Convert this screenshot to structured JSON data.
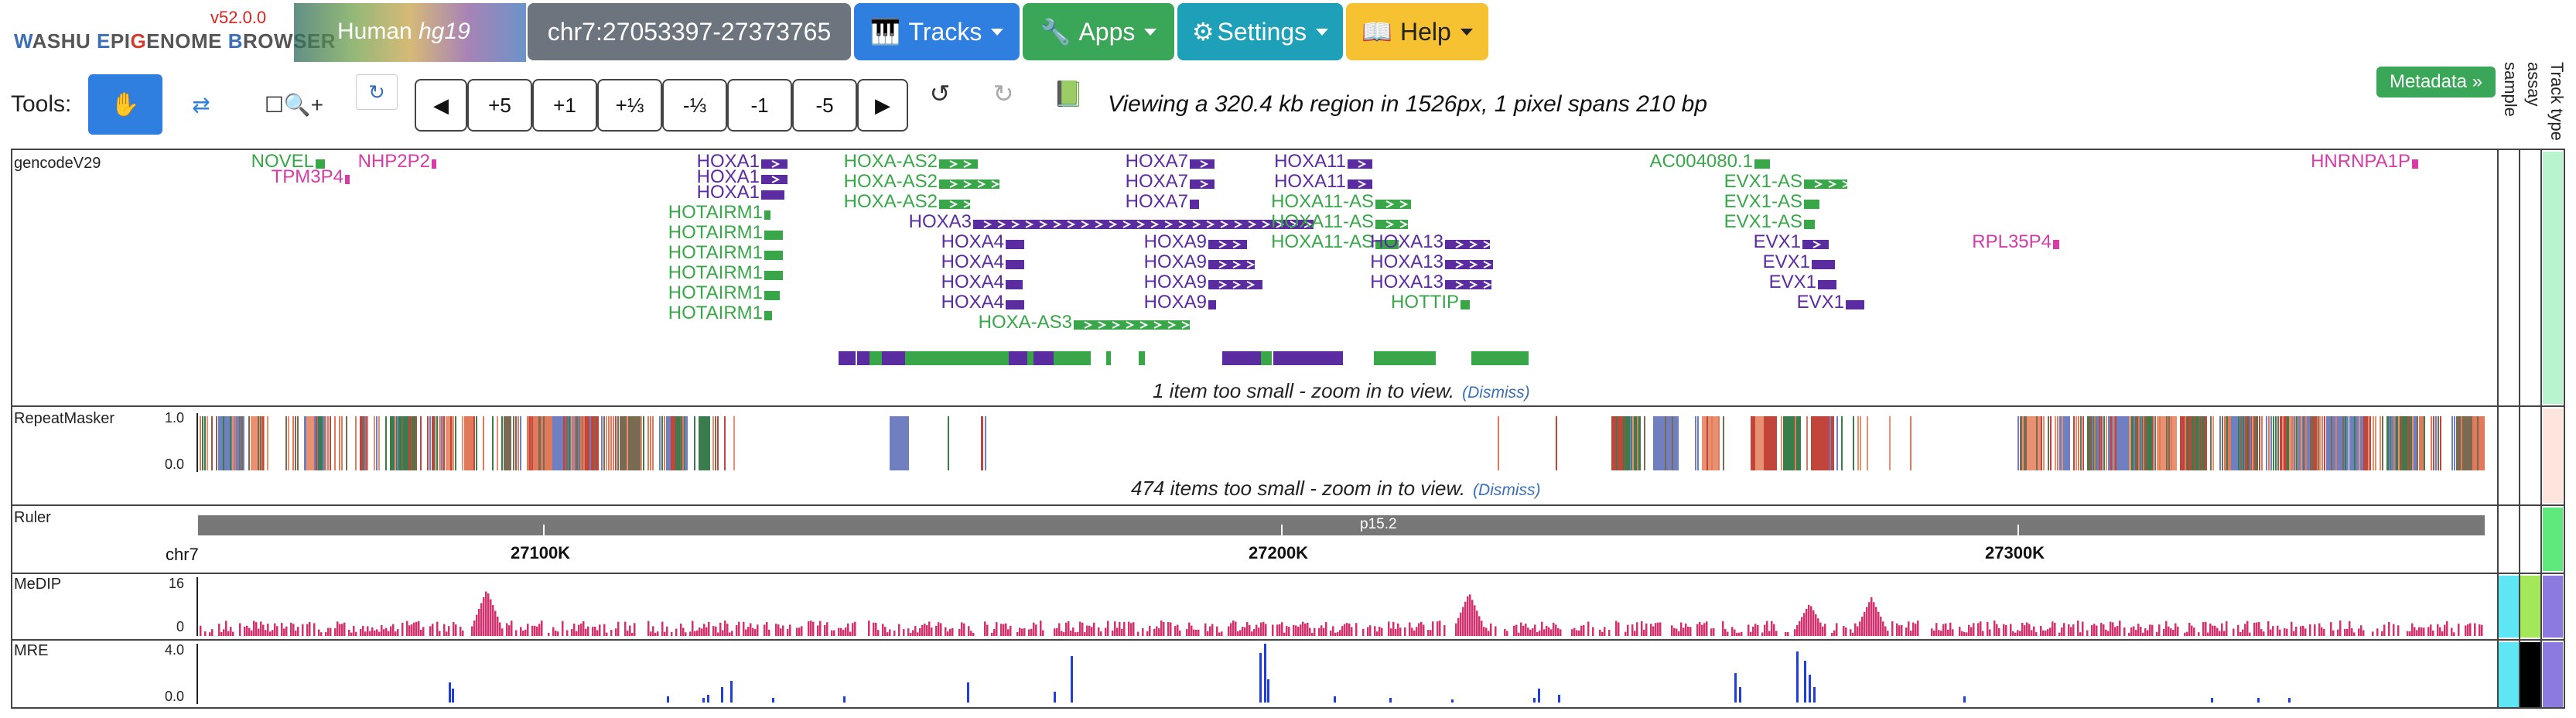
{
  "header": {
    "logo_text": "WASHU EPIGENOME BROWSER",
    "version": "v52.0.0",
    "genome_name": "Human",
    "genome_assembly": "hg19",
    "region": "chr7:27053397-27373765",
    "tracks_label": "Tracks",
    "apps_label": "Apps",
    "settings_label": "Settings",
    "help_label": "Help"
  },
  "toolbar": {
    "tools_label": "Tools:",
    "nav_buttons": [
      "+5",
      "+1",
      "+⅓",
      "-⅓",
      "-1",
      "-5"
    ],
    "view_text": "Viewing a 320.4 kb region in 1526px, 1 pixel spans 210 bp",
    "metadata_label": "Metadata »",
    "metadata_columns": [
      "sample",
      "assay",
      "Track type"
    ]
  },
  "tracks": {
    "gencode": {
      "name": "gencodeV29",
      "note": "1 item too small - zoom in to view.",
      "dismiss": "(Dismiss)",
      "genes": [
        {
          "label": "NOVEL",
          "color": "#3aa64a"
        },
        {
          "label": "NHP2P2",
          "color": "#d63ca6"
        },
        {
          "label": "TPM3P4",
          "color": "#d63ca6"
        },
        {
          "label": "HOXA1",
          "color": "#5b2ca0"
        },
        {
          "label": "HOXA1",
          "color": "#5b2ca0"
        },
        {
          "label": "HOXA1",
          "color": "#5b2ca0"
        },
        {
          "label": "HOTAIRM1",
          "color": "#3aa64a"
        },
        {
          "label": "HOTAIRM1",
          "color": "#3aa64a"
        },
        {
          "label": "HOTAIRM1",
          "color": "#3aa64a"
        },
        {
          "label": "HOTAIRM1",
          "color": "#3aa64a"
        },
        {
          "label": "HOTAIRM1",
          "color": "#3aa64a"
        },
        {
          "label": "HOTAIRM1",
          "color": "#3aa64a"
        },
        {
          "label": "HOXA-AS2",
          "color": "#3aa64a"
        },
        {
          "label": "HOXA-AS2",
          "color": "#3aa64a"
        },
        {
          "label": "HOXA-AS2",
          "color": "#3aa64a"
        },
        {
          "label": "HOXA3",
          "color": "#5b2ca0"
        },
        {
          "label": "HOXA4",
          "color": "#5b2ca0"
        },
        {
          "label": "HOXA4",
          "color": "#5b2ca0"
        },
        {
          "label": "HOXA4",
          "color": "#5b2ca0"
        },
        {
          "label": "HOXA4",
          "color": "#5b2ca0"
        },
        {
          "label": "HOXA-AS3",
          "color": "#3aa64a"
        },
        {
          "label": "HOXA7",
          "color": "#5b2ca0"
        },
        {
          "label": "HOXA7",
          "color": "#5b2ca0"
        },
        {
          "label": "HOXA7",
          "color": "#5b2ca0"
        },
        {
          "label": "HOXA9",
          "color": "#5b2ca0"
        },
        {
          "label": "HOXA9",
          "color": "#5b2ca0"
        },
        {
          "label": "HOXA9",
          "color": "#5b2ca0"
        },
        {
          "label": "HOXA9",
          "color": "#5b2ca0"
        },
        {
          "label": "HOXA11",
          "color": "#5b2ca0"
        },
        {
          "label": "HOXA11",
          "color": "#5b2ca0"
        },
        {
          "label": "HOXA11-AS",
          "color": "#3aa64a"
        },
        {
          "label": "HOXA11-AS",
          "color": "#3aa64a"
        },
        {
          "label": "HOXA11-AS",
          "color": "#3aa64a"
        },
        {
          "label": "HOXA13",
          "color": "#5b2ca0"
        },
        {
          "label": "HOXA13",
          "color": "#5b2ca0"
        },
        {
          "label": "HOXA13",
          "color": "#5b2ca0"
        },
        {
          "label": "HOTTIP",
          "color": "#3aa64a"
        },
        {
          "label": "AC004080.1",
          "color": "#3aa64a"
        },
        {
          "label": "EVX1-AS",
          "color": "#3aa64a"
        },
        {
          "label": "EVX1-AS",
          "color": "#3aa64a"
        },
        {
          "label": "EVX1-AS",
          "color": "#3aa64a"
        },
        {
          "label": "EVX1",
          "color": "#5b2ca0"
        },
        {
          "label": "EVX1",
          "color": "#5b2ca0"
        },
        {
          "label": "EVX1",
          "color": "#5b2ca0"
        },
        {
          "label": "EVX1",
          "color": "#5b2ca0"
        },
        {
          "label": "RPL35P4",
          "color": "#d63ca6"
        },
        {
          "label": "HNRNPA1P",
          "color": "#d63ca6"
        }
      ]
    },
    "repeatmasker": {
      "name": "RepeatMasker",
      "ymax": "1.0",
      "ymin": "0.0",
      "note": "474 items too small - zoom in to view.",
      "dismiss": "(Dismiss)"
    },
    "ruler": {
      "name": "Ruler",
      "chrom": "chr7",
      "band": "p15.2",
      "positions": [
        "27100K",
        "27200K",
        "27300K"
      ]
    },
    "medip": {
      "name": "MeDIP",
      "ymax": "16",
      "ymin": "0",
      "color": "#d4306e"
    },
    "mre": {
      "name": "MRE",
      "ymax": "4.0",
      "ymin": "0.0",
      "color": "#1f3fd8"
    }
  },
  "colors": {
    "tracks_btn": "#2f7fe0",
    "apps_btn": "#3aa657",
    "settings_btn": "#1ea0b8",
    "help_btn": "#f6c232",
    "region_btn": "#6c757d"
  },
  "icons": [
    "hand-icon",
    "shuffle-icon",
    "zoom-select-icon",
    "refresh-icon",
    "undo-icon",
    "redo-icon",
    "book-icon",
    "piano-icon",
    "wrench-icon",
    "gear-icon",
    "help-book-icon"
  ]
}
